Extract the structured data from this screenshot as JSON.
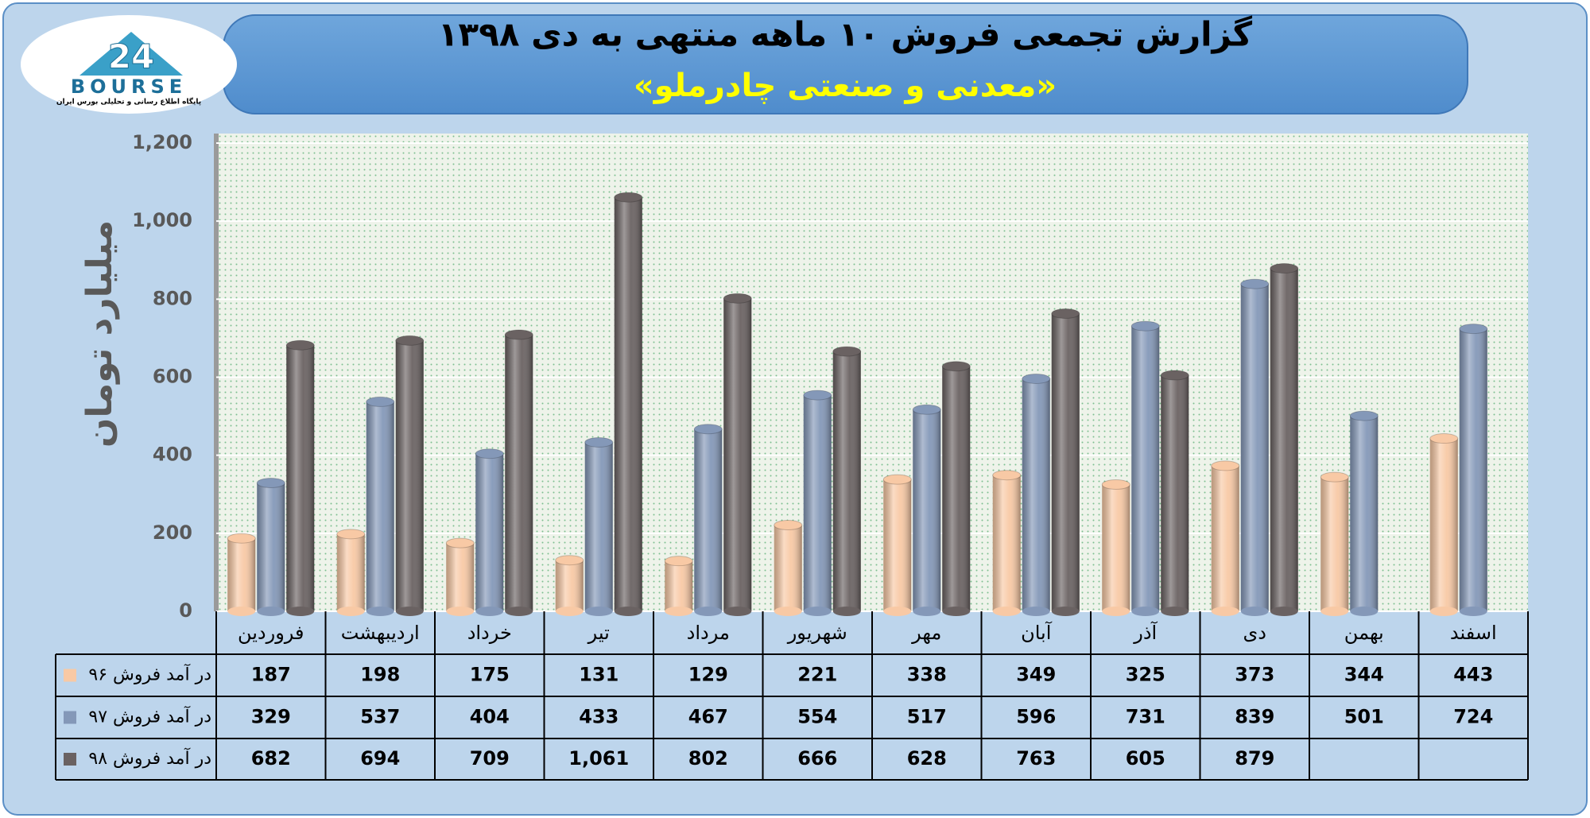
{
  "logo": {
    "mark": "24",
    "name": "BOURSE",
    "tagline": "پایگاه اطلاع رسانی و تحلیلی بورس ایران"
  },
  "chart_data": {
    "type": "bar",
    "title": "گزارش تجمعی فروش ۱۰ ماهه منتهی به دی ۱۳۹۸",
    "subtitle": "«معدنی و صنعتی چادرملو»",
    "y_label": "میلیارد تومان",
    "categories": [
      "فروردین",
      "اردیبهشت",
      "خرداد",
      "تیر",
      "مرداد",
      "شهریور",
      "مهر",
      "آبان",
      "آذر",
      "دی",
      "بهمن",
      "اسفند"
    ],
    "series": [
      {
        "name": "در آمد فروش ۹۶",
        "color": "#f8c9a5",
        "values": [
          187,
          198,
          175,
          131,
          129,
          221,
          338,
          349,
          325,
          373,
          344,
          443
        ]
      },
      {
        "name": "در آمد فروش ۹۷",
        "color": "#8498b8",
        "values": [
          329,
          537,
          404,
          433,
          467,
          554,
          517,
          596,
          731,
          839,
          501,
          724
        ]
      },
      {
        "name": "در آمد فروش ۹۸",
        "color": "#6a6262",
        "values": [
          682,
          694,
          709,
          1061,
          802,
          666,
          628,
          763,
          605,
          879,
          null,
          null
        ],
        "value_labels": [
          "682",
          "694",
          "709",
          "1,061",
          "802",
          "666",
          "628",
          "763",
          "605",
          "879",
          null,
          null
        ]
      }
    ],
    "ylim": [
      0,
      1200
    ],
    "yticks": [
      0,
      200,
      400,
      600,
      800,
      {
        "value": 1000,
        "label": "1,000"
      },
      {
        "value": 1200,
        "label": "1,200"
      }
    ],
    "grid": true
  }
}
